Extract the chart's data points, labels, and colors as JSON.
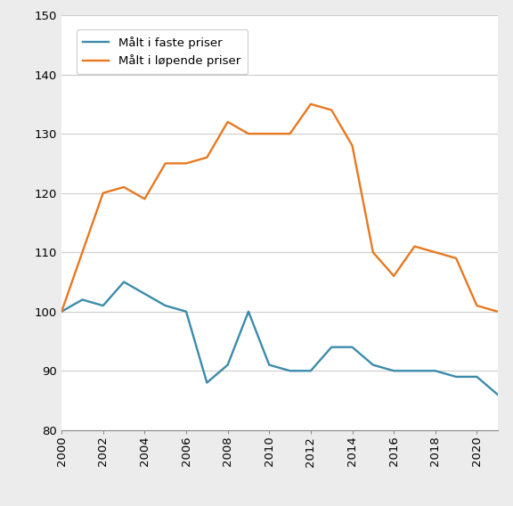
{
  "years": [
    2000,
    2001,
    2002,
    2003,
    2004,
    2005,
    2006,
    2007,
    2008,
    2009,
    2010,
    2011,
    2012,
    2013,
    2014,
    2015,
    2016,
    2017,
    2018,
    2019,
    2020,
    2021
  ],
  "faste_priser": [
    100,
    102,
    101,
    105,
    103,
    101,
    100,
    88,
    91,
    100,
    91,
    90,
    90,
    94,
    94,
    91,
    90,
    90,
    90,
    89,
    89,
    86
  ],
  "lopende_priser": [
    100,
    110,
    120,
    121,
    119,
    125,
    125,
    126,
    132,
    130,
    130,
    130,
    135,
    134,
    128,
    110,
    106,
    111,
    110,
    109,
    101,
    100
  ],
  "faste_color": "#3b8bab",
  "lopende_color": "#e87820",
  "ylim": [
    80,
    150
  ],
  "yticks": [
    80,
    90,
    100,
    110,
    120,
    130,
    140,
    150
  ],
  "xticks": [
    2000,
    2002,
    2004,
    2006,
    2008,
    2010,
    2012,
    2014,
    2016,
    2018,
    2020
  ],
  "legend_faste": "Målt i faste priser",
  "legend_lopende": "Målt i løpende priser",
  "linewidth": 1.7,
  "background_color": "#ececec",
  "plot_bg": "#ffffff"
}
